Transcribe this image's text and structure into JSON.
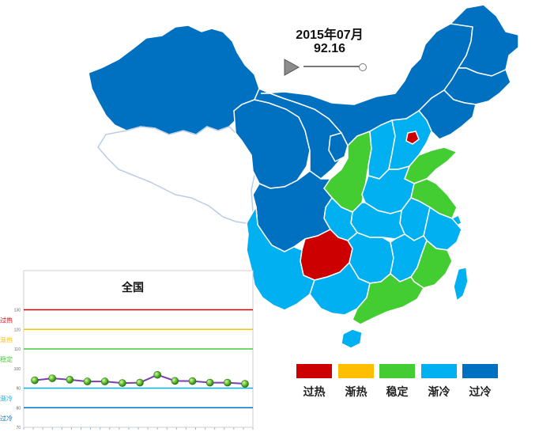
{
  "header": {
    "date": "2015年07月",
    "index_value": "92.16"
  },
  "legend": [
    {
      "label": "过热",
      "color": "#cc0000"
    },
    {
      "label": "渐热",
      "color": "#ffbf00"
    },
    {
      "label": "稳定",
      "color": "#44cc33"
    },
    {
      "label": "渐冷",
      "color": "#00b0f0"
    },
    {
      "label": "过冷",
      "color": "#0070c0"
    }
  ],
  "colors": {
    "overheat": "#cc0000",
    "warming": "#ffbf00",
    "stable": "#44cc33",
    "cooling": "#00b0f0",
    "overcool": "#0070c0",
    "nodata": "#ffffff"
  },
  "chart_data": {
    "type": "line",
    "title": "全国",
    "ylim": [
      70,
      150
    ],
    "y_ticks": [
      "70",
      "80",
      "90",
      "100",
      "110",
      "120",
      "130"
    ],
    "zones": [
      {
        "label": "过热",
        "value": 130,
        "color": "#cc0000"
      },
      {
        "label": "渐热",
        "value": 120,
        "color": "#ffbf00"
      },
      {
        "label": "稳定",
        "value": 110,
        "color": "#44cc33"
      },
      {
        "label": "渐冷",
        "value": 90,
        "color": "#00b0f0"
      },
      {
        "label": "过冷",
        "value": 80,
        "color": "#0070c0"
      }
    ],
    "series": [
      {
        "values": [
          94,
          95,
          94.3,
          93.4,
          93.4,
          92.6,
          92.8,
          96.8,
          93.7,
          93.6,
          92.8,
          92.8,
          92.2
        ]
      }
    ],
    "grid": false
  }
}
